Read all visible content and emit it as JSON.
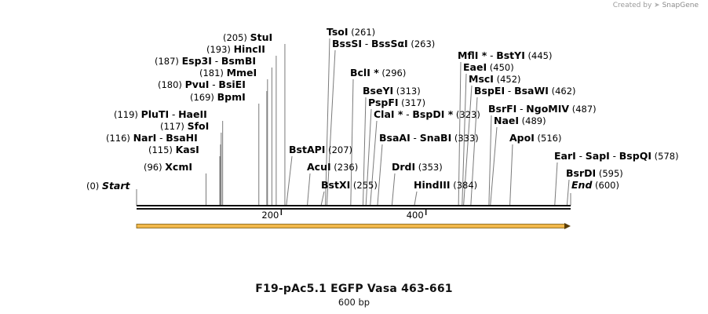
{
  "credit": {
    "prefix": "Created by",
    "brand": "SnapGene",
    "icon": "snapgene-logo-icon"
  },
  "map": {
    "title": "F19-pAc5.1 EGFP Vasa 463-661",
    "length_label": "600 bp",
    "length": 600,
    "ticks": [
      {
        "label": "200",
        "pos": 200
      },
      {
        "label": "400",
        "pos": 400
      }
    ],
    "feature": {
      "name": "",
      "color": "#f2b84b",
      "start": 0,
      "end": 600,
      "direction": "forward"
    },
    "sites": [
      {
        "pos": 0,
        "pos_label": "(0)",
        "names": [
          "Start"
        ],
        "italic": true
      },
      {
        "pos": 96,
        "pos_label": "(96)",
        "names": [
          "XcmI"
        ]
      },
      {
        "pos": 115,
        "pos_label": "(115)",
        "names": [
          "KasI"
        ]
      },
      {
        "pos": 116,
        "pos_label": "(116)",
        "names": [
          "NarI",
          "BsaHI"
        ]
      },
      {
        "pos": 117,
        "pos_label": "(117)",
        "names": [
          "SfoI"
        ]
      },
      {
        "pos": 119,
        "pos_label": "(119)",
        "names": [
          "PluTI",
          "HaeII"
        ]
      },
      {
        "pos": 169,
        "pos_label": "(169)",
        "names": [
          "BpmI"
        ]
      },
      {
        "pos": 180,
        "pos_label": "(180)",
        "names": [
          "PvuI",
          "BsiEI"
        ]
      },
      {
        "pos": 181,
        "pos_label": "(181)",
        "names": [
          "MmeI"
        ]
      },
      {
        "pos": 187,
        "pos_label": "(187)",
        "names": [
          "Esp3I",
          "BsmBI"
        ]
      },
      {
        "pos": 193,
        "pos_label": "(193)",
        "names": [
          "HincII"
        ]
      },
      {
        "pos": 205,
        "pos_label": "(205)",
        "names": [
          "StuI"
        ]
      },
      {
        "pos": 207,
        "pos_label": "(207)",
        "names": [
          "BstAPI"
        ]
      },
      {
        "pos": 236,
        "pos_label": "(236)",
        "names": [
          "AcuI"
        ]
      },
      {
        "pos": 255,
        "pos_label": "(255)",
        "names": [
          "BstXI"
        ]
      },
      {
        "pos": 261,
        "pos_label": "(261)",
        "names": [
          "TsoI"
        ]
      },
      {
        "pos": 263,
        "pos_label": "(263)",
        "names": [
          "BssSI",
          "BssSαI"
        ]
      },
      {
        "pos": 296,
        "pos_label": "(296)",
        "names": [
          "BclI *"
        ]
      },
      {
        "pos": 313,
        "pos_label": "(313)",
        "names": [
          "BseYI"
        ]
      },
      {
        "pos": 317,
        "pos_label": "(317)",
        "names": [
          "PspFI"
        ]
      },
      {
        "pos": 323,
        "pos_label": "(323)",
        "names": [
          "ClaI *",
          "BspDI *"
        ]
      },
      {
        "pos": 333,
        "pos_label": "(333)",
        "names": [
          "BsaAI",
          "SnaBI"
        ]
      },
      {
        "pos": 353,
        "pos_label": "(353)",
        "names": [
          "DrdI"
        ]
      },
      {
        "pos": 384,
        "pos_label": "(384)",
        "names": [
          "HindIII"
        ]
      },
      {
        "pos": 445,
        "pos_label": "(445)",
        "names": [
          "MflI *",
          "BstYI"
        ]
      },
      {
        "pos": 450,
        "pos_label": "(450)",
        "names": [
          "EaeI"
        ]
      },
      {
        "pos": 452,
        "pos_label": "(452)",
        "names": [
          "MscI"
        ]
      },
      {
        "pos": 462,
        "pos_label": "(462)",
        "names": [
          "BspEI",
          "BsaWI"
        ]
      },
      {
        "pos": 487,
        "pos_label": "(487)",
        "names": [
          "BsrFI",
          "NgoMIV"
        ]
      },
      {
        "pos": 489,
        "pos_label": "(489)",
        "names": [
          "NaeI"
        ]
      },
      {
        "pos": 516,
        "pos_label": "(516)",
        "names": [
          "ApoI"
        ]
      },
      {
        "pos": 578,
        "pos_label": "(578)",
        "names": [
          "EarI",
          "SapI",
          "BspQI"
        ]
      },
      {
        "pos": 595,
        "pos_label": "(595)",
        "names": [
          "BsrDI"
        ]
      },
      {
        "pos": 600,
        "pos_label": "(600)",
        "names": [
          "End"
        ],
        "italic": true
      }
    ]
  }
}
